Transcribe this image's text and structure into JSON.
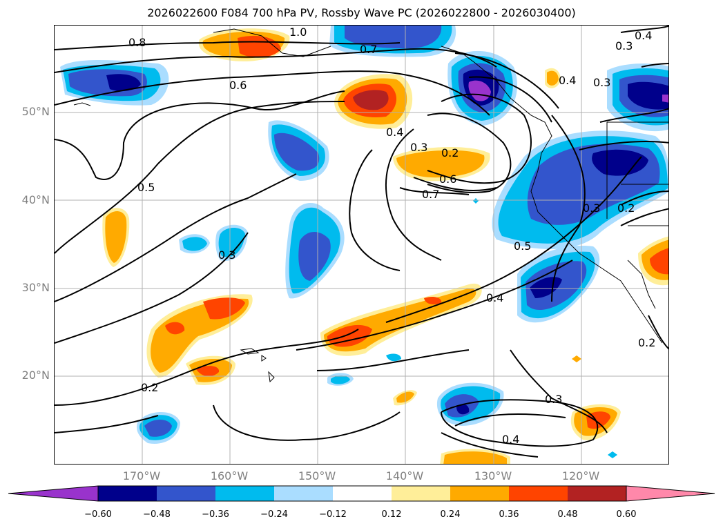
{
  "title": "2026022600 F084 700 hPa PV, Rossby Wave PC (2026022800 - 2026030400)",
  "lat_labels": [
    "50°N",
    "40°N",
    "30°N",
    "20°N"
  ],
  "lon_labels": [
    "170°W",
    "160°W",
    "150°W",
    "140°W",
    "130°W",
    "120°W"
  ],
  "colorbar": {
    "ticks": [
      "−0.60",
      "−0.48",
      "−0.36",
      "−0.24",
      "−0.12",
      "0.12",
      "0.24",
      "0.36",
      "0.48",
      "0.60"
    ],
    "colors": [
      "#9933cc",
      "#00008b",
      "#3355cc",
      "#00bbee",
      "#aaddff",
      "#ffffff",
      "#ffee99",
      "#ffaa00",
      "#ff4400",
      "#b22222",
      "#ff88aa"
    ]
  },
  "contour_labels": [
    "0.8",
    "1.0",
    "0.7",
    "0.6",
    "0.5",
    "0.4",
    "0.3",
    "0.3",
    "0.2",
    "0.6",
    "0.7",
    "0.4",
    "0.5",
    "0.4",
    "0.3",
    "0.3",
    "0.4",
    "0.3",
    "0.2",
    "0.2",
    "0.3",
    "0.4",
    "0.2"
  ]
}
